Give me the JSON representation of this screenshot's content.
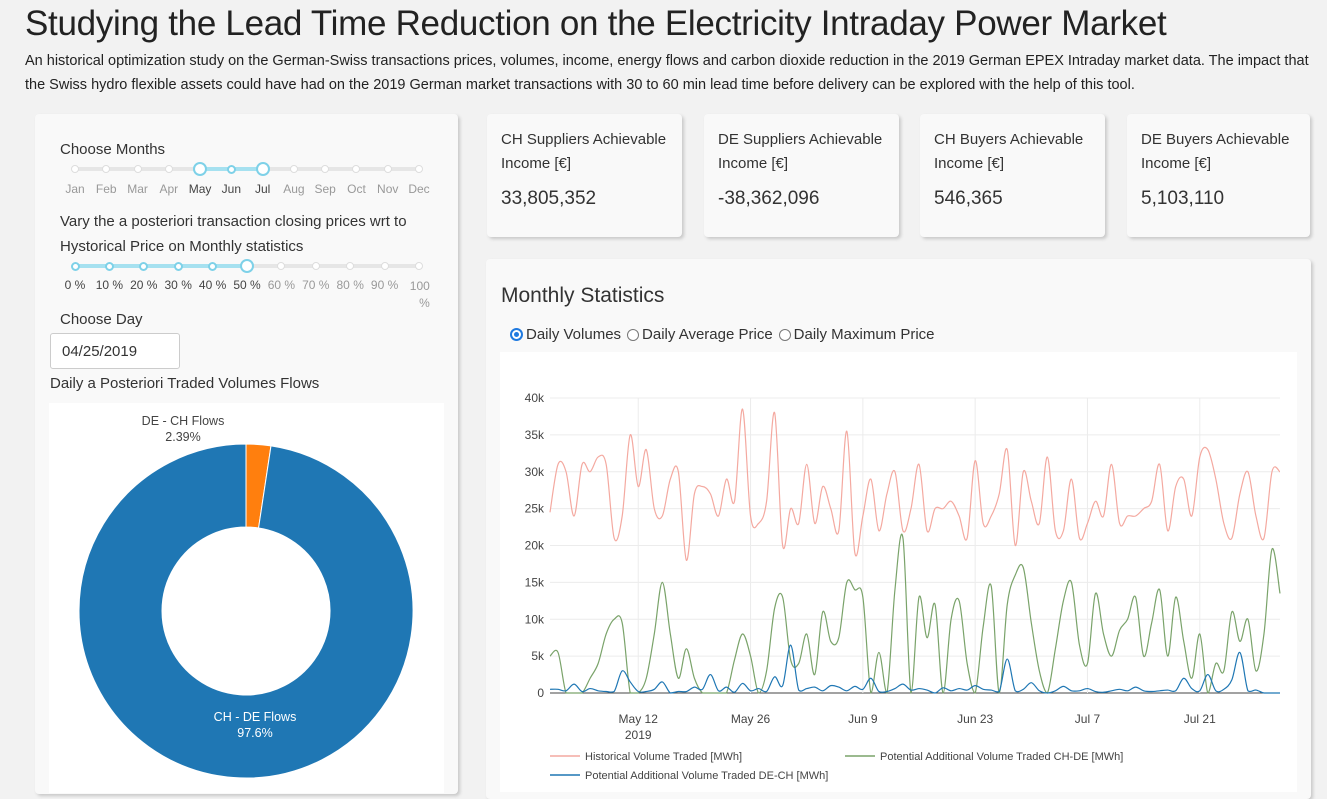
{
  "header": {
    "title": "Studying the Lead Time Reduction on the Electricity Intraday Power Market",
    "description": "An historical optimization study on the German-Swiss transactions prices, volumes, income, energy flows and carbon dioxide reduction in the 2019 German EPEX Intraday market data. The impact that the Swiss hydro flexible assets could have had on the 2019 German market transactions with 30 to 60 min lead time before delivery can be explored with the help of this tool."
  },
  "controls": {
    "months_label": "Choose Months",
    "months": [
      "Jan",
      "Feb",
      "Mar",
      "Apr",
      "May",
      "Jun",
      "Jul",
      "Aug",
      "Sep",
      "Oct",
      "Nov",
      "Dec"
    ],
    "months_selected": [
      4,
      6
    ],
    "price_label_line1": "Vary the a posteriori transaction closing prices wrt to",
    "price_label_line2": "Hystorical Price on Monthly statistics",
    "price_marks": [
      "0 %",
      "10 %",
      "20 %",
      "30 %",
      "40 %",
      "50 %",
      "60 %",
      "70 %",
      "80 %",
      "90 %",
      "100 %"
    ],
    "price_selected": 5,
    "day_label": "Choose Day",
    "day_value": "04/25/2019",
    "flows_label": "Daily a Posteriori Traded Volumes Flows"
  },
  "pie": {
    "slices": [
      {
        "label": "DE - CH Flows",
        "percent_text": "2.39%",
        "value": 2.39,
        "color": "#ff7f0e"
      },
      {
        "label": "CH - DE Flows",
        "percent_text": "97.6%",
        "value": 97.61,
        "color": "#1f77b4"
      }
    ]
  },
  "kpis": [
    {
      "label": "CH Suppliers Achievable Income [€]",
      "value": "33,805,352"
    },
    {
      "label": "DE Suppliers Achievable Income [€]",
      "value": "-38,362,096"
    },
    {
      "label": "CH Buyers Achievable Income [€]",
      "value": "546,365"
    },
    {
      "label": "DE Buyers Achievable Income [€]",
      "value": "5,103,110"
    }
  ],
  "stats": {
    "title": "Monthly Statistics",
    "radio_options": [
      "Daily Volumes",
      "Daily Average Price",
      "Daily Maximum Price"
    ],
    "radio_selected": 0
  },
  "chart_data": {
    "type": "line",
    "x_start": "2019-05-01",
    "x_end": "2019-07-31",
    "x_ticks": [
      "May 12",
      "May 26",
      "Jun 9",
      "Jun 23",
      "Jul 7",
      "Jul 21"
    ],
    "x_year_label": "2019",
    "y_ticks": [
      "0",
      "5k",
      "10k",
      "15k",
      "20k",
      "25k",
      "30k",
      "35k",
      "40k"
    ],
    "ylim": [
      0,
      40000
    ],
    "grid": true,
    "legend_position": "bottom",
    "series": [
      {
        "name": "Historical Volume Traded [MWh]",
        "color": "#f4a9a0",
        "values": [
          24500,
          31000,
          30000,
          24000,
          31000,
          30000,
          32000,
          31000,
          21000,
          24000,
          35000,
          28000,
          33000,
          25000,
          24000,
          29000,
          30000,
          18000,
          27000,
          28000,
          27000,
          24000,
          29000,
          26000,
          38500,
          24000,
          23000,
          26000,
          38000,
          20000,
          25000,
          23000,
          31000,
          23000,
          28000,
          25000,
          22000,
          35500,
          19000,
          24000,
          29000,
          22000,
          27000,
          30000,
          22000,
          25000,
          31000,
          22000,
          25000,
          25000,
          26000,
          24000,
          21000,
          31500,
          23000,
          24000,
          27000,
          33000,
          20000,
          30000,
          26000,
          23000,
          32000,
          22000,
          22000,
          29000,
          21000,
          23000,
          26000,
          24000,
          31000,
          23000,
          24000,
          24000,
          25000,
          26000,
          31000,
          22000,
          28000,
          29000,
          24000,
          32000,
          33000,
          29000,
          23000,
          21000,
          27000,
          30000,
          24000,
          21000,
          30000,
          30000
        ]
      },
      {
        "name": "Potential Additional Volume Traded CH-DE [MWh]",
        "color": "#7aa36a",
        "values": [
          5000,
          5500,
          0,
          0,
          0,
          2000,
          4000,
          8000,
          10000,
          9500,
          0,
          0,
          2000,
          8000,
          15000,
          8000,
          2000,
          6000,
          2000,
          0,
          0,
          0,
          0,
          4500,
          8000,
          5000,
          0,
          3000,
          11500,
          13000,
          4500,
          4000,
          8000,
          2500,
          11000,
          7000,
          7500,
          15000,
          14000,
          13000,
          0,
          5500,
          0,
          14000,
          21000,
          0,
          13000,
          7500,
          12000,
          0,
          10000,
          12500,
          4000,
          0,
          9000,
          14500,
          0,
          12000,
          16000,
          17000,
          9500,
          3000,
          0,
          6000,
          12500,
          15000,
          6500,
          4000,
          13500,
          8000,
          5000,
          8500,
          10000,
          13000,
          5000,
          9500,
          14000,
          5000,
          13000,
          7000,
          2000,
          8000,
          0,
          4000,
          3000,
          11000,
          7000,
          10000,
          3000,
          8000,
          19500,
          13500
        ]
      },
      {
        "name": "Potential Additional Volume Traded DE-CH [MWh]",
        "color": "#1f77b4",
        "values": [
          500,
          500,
          300,
          1200,
          200,
          600,
          300,
          200,
          200,
          3000,
          1500,
          200,
          200,
          500,
          1500,
          0,
          200,
          200,
          800,
          500,
          2500,
          300,
          800,
          100,
          1300,
          300,
          600,
          200,
          2200,
          1000,
          6500,
          400,
          600,
          800,
          300,
          1000,
          800,
          300,
          900,
          500,
          2000,
          200,
          200,
          600,
          1200,
          400,
          600,
          400,
          0,
          700,
          300,
          600,
          400,
          1000,
          500,
          400,
          200,
          4600,
          300,
          500,
          1400,
          300,
          0,
          300,
          900,
          300,
          300,
          600,
          200,
          100,
          300,
          500,
          300,
          800,
          300,
          200,
          300,
          400,
          300,
          2000,
          600,
          300,
          2500,
          300,
          500,
          1800,
          5500,
          300,
          400,
          0,
          0,
          0
        ]
      }
    ]
  }
}
